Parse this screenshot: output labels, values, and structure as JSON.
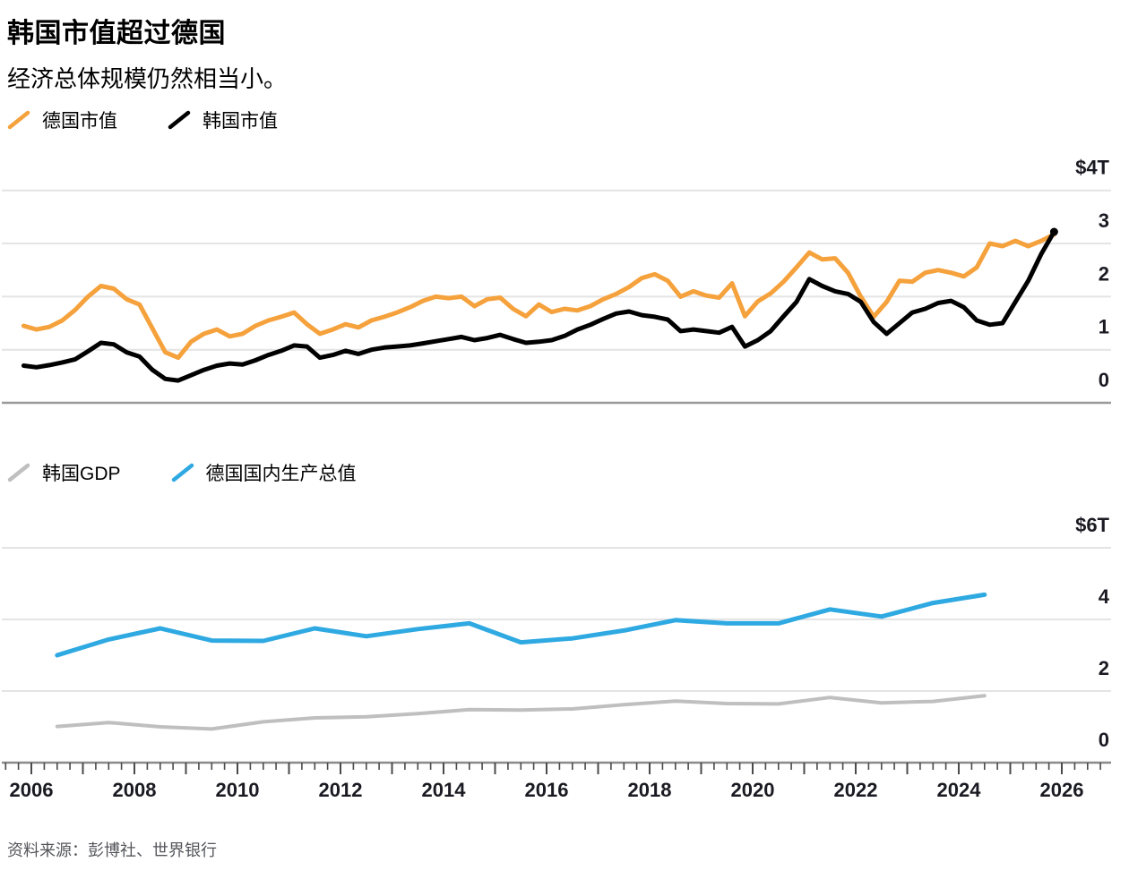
{
  "header": {
    "title": "韩国市值超过德国",
    "subtitle": "经济总体规模仍然相当小。"
  },
  "source": {
    "label": "资料来源：彭博社、世界银行"
  },
  "colors": {
    "germany_market_cap": "#F5A13C",
    "korea_market_cap": "#000000",
    "korea_gdp": "#BFBFBF",
    "germany_gdp": "#2FA9E1",
    "gridline": "#E4E4E4",
    "axis_line": "#9A9A9A",
    "bottom_axis_line": "#8A8A8A",
    "tick": "#4A4A4A",
    "axis_label": "#1A1A22"
  },
  "xaxis": {
    "tick_labels": [
      "2006",
      "2008",
      "2010",
      "2012",
      "2014",
      "2016",
      "2018",
      "2020",
      "2022",
      "2024",
      "2026"
    ],
    "minor_ticks_per_year": 4
  },
  "chart_data": [
    {
      "type": "line",
      "unit": "$T",
      "legend": [
        {
          "label": "德国市值",
          "color": "#F5A13C"
        },
        {
          "label": "韩国市值",
          "color": "#000000"
        }
      ],
      "ylim": [
        0,
        4
      ],
      "yticks": [
        {
          "label": "$4T",
          "value": 4
        },
        {
          "label": "3",
          "value": 3
        },
        {
          "label": "2",
          "value": 2
        },
        {
          "label": "1",
          "value": 1
        },
        {
          "label": "0",
          "value": 0
        }
      ],
      "x_start": 2005.85,
      "x_step": 0.25,
      "series": [
        {
          "key": "germany-market-cap",
          "name": "德国市值",
          "color": "#F5A13C",
          "values": [
            1.45,
            1.38,
            1.43,
            1.55,
            1.75,
            2.0,
            2.2,
            2.15,
            1.95,
            1.85,
            1.4,
            0.95,
            0.85,
            1.15,
            1.3,
            1.38,
            1.25,
            1.3,
            1.45,
            1.55,
            1.62,
            1.7,
            1.48,
            1.3,
            1.38,
            1.48,
            1.42,
            1.55,
            1.62,
            1.7,
            1.8,
            1.92,
            2.0,
            1.97,
            2.0,
            1.82,
            1.95,
            1.98,
            1.77,
            1.63,
            1.85,
            1.71,
            1.77,
            1.74,
            1.82,
            1.95,
            2.05,
            2.18,
            2.35,
            2.42,
            2.3,
            2.0,
            2.1,
            2.02,
            1.98,
            2.25,
            1.63,
            1.91,
            2.06,
            2.28,
            2.55,
            2.83,
            2.7,
            2.72,
            2.45,
            2.0,
            1.62,
            1.9,
            2.3,
            2.28,
            2.45,
            2.5,
            2.45,
            2.38,
            2.55,
            3.0,
            2.95,
            3.05,
            2.95,
            3.05,
            3.17
          ]
        },
        {
          "key": "korea-market-cap",
          "name": "韩国市值",
          "color": "#000000",
          "end_dot": true,
          "values": [
            0.7,
            0.67,
            0.71,
            0.76,
            0.82,
            0.97,
            1.13,
            1.1,
            0.95,
            0.87,
            0.62,
            0.45,
            0.42,
            0.52,
            0.62,
            0.7,
            0.74,
            0.72,
            0.8,
            0.9,
            0.98,
            1.08,
            1.06,
            0.85,
            0.9,
            0.98,
            0.92,
            1.0,
            1.04,
            1.06,
            1.08,
            1.12,
            1.16,
            1.2,
            1.24,
            1.18,
            1.22,
            1.28,
            1.2,
            1.13,
            1.15,
            1.18,
            1.26,
            1.38,
            1.47,
            1.58,
            1.68,
            1.72,
            1.65,
            1.62,
            1.57,
            1.35,
            1.38,
            1.35,
            1.32,
            1.43,
            1.06,
            1.18,
            1.35,
            1.63,
            1.9,
            2.33,
            2.2,
            2.1,
            2.05,
            1.9,
            1.52,
            1.3,
            1.5,
            1.7,
            1.77,
            1.88,
            1.92,
            1.8,
            1.55,
            1.47,
            1.5,
            1.9,
            2.3,
            2.8,
            3.22
          ]
        }
      ]
    },
    {
      "type": "line",
      "unit": "$T",
      "legend": [
        {
          "label": "韩国GDP",
          "color": "#BFBFBF"
        },
        {
          "label": "德国国内生产总值",
          "color": "#2FA9E1"
        }
      ],
      "ylim": [
        0,
        6
      ],
      "yticks": [
        {
          "label": "$6T",
          "value": 6
        },
        {
          "label": "4",
          "value": 4
        },
        {
          "label": "2",
          "value": 2
        },
        {
          "label": "0",
          "value": 0
        }
      ],
      "x_start": 2006.5,
      "x_step": 1,
      "series": [
        {
          "key": "korea-gdp",
          "name": "韩国GDP",
          "color": "#BFBFBF",
          "values": [
            1.01,
            1.12,
            1.0,
            0.94,
            1.14,
            1.25,
            1.28,
            1.37,
            1.48,
            1.47,
            1.5,
            1.62,
            1.72,
            1.65,
            1.64,
            1.82,
            1.67,
            1.71,
            1.87
          ]
        },
        {
          "key": "germany-gdp",
          "name": "德国国内生产总值",
          "color": "#2FA9E1",
          "values": [
            3.0,
            3.44,
            3.75,
            3.41,
            3.4,
            3.75,
            3.53,
            3.73,
            3.89,
            3.36,
            3.47,
            3.69,
            3.98,
            3.89,
            3.89,
            4.28,
            4.08,
            4.46,
            4.69
          ]
        }
      ]
    }
  ]
}
